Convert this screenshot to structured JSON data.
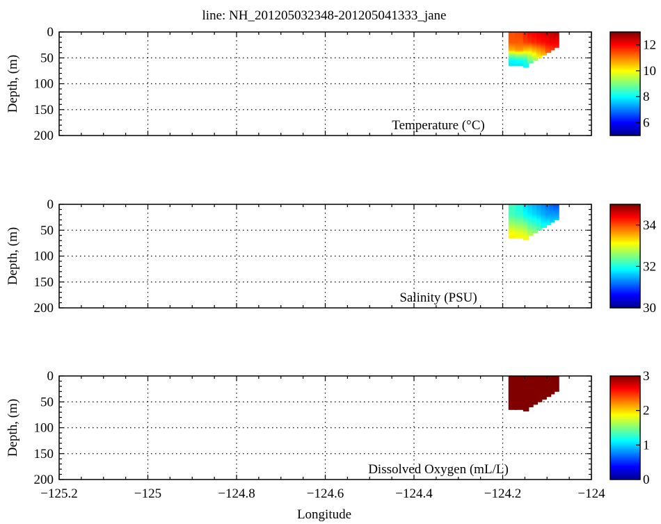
{
  "title": "line: NH_201205032348-201205041333_jane",
  "xlabel": "Longitude",
  "x_ticks": [
    -125.2,
    -125,
    -124.8,
    -124.6,
    -124.4,
    -124.2,
    -124
  ],
  "x_tick_labels": [
    "−125.2",
    "−125",
    "−124.8",
    "−124.6",
    "−124.4",
    "−124.2",
    "−124"
  ],
  "xlim": [
    -125.2,
    -124
  ],
  "chart_data": [
    {
      "type": "heatmap",
      "name": "temperature",
      "label": "Temperature (°C)",
      "ylabel": "Depth, (m)",
      "ylim": [
        0,
        200
      ],
      "y_ticks": [
        0,
        50,
        100,
        150,
        200
      ],
      "y_tick_labels": [
        "0",
        "50",
        "100",
        "150",
        "200"
      ],
      "colorbar": {
        "min": 5,
        "max": 13,
        "ticks": [
          6,
          8,
          10,
          12
        ],
        "tick_labels": [
          "6",
          "8",
          "10",
          "12"
        ]
      },
      "grid": true,
      "profiles": [
        {
          "lon": -124.183,
          "max_depth": 65,
          "values": [
            [
              0,
              11.4
            ],
            [
              20,
              11.3
            ],
            [
              35,
              10.6
            ],
            [
              45,
              9.0
            ],
            [
              55,
              8.0
            ],
            [
              65,
              7.8
            ]
          ]
        },
        {
          "lon": -124.168,
          "max_depth": 65,
          "values": [
            [
              0,
              11.5
            ],
            [
              20,
              11.3
            ],
            [
              35,
              10.8
            ],
            [
              45,
              9.2
            ],
            [
              55,
              8.1
            ],
            [
              65,
              7.8
            ]
          ]
        },
        {
          "lon": -124.15,
          "max_depth": 68,
          "values": [
            [
              0,
              11.8
            ],
            [
              20,
              11.5
            ],
            [
              35,
              10.5
            ],
            [
              45,
              9.2
            ],
            [
              55,
              8.3
            ],
            [
              68,
              8.0
            ]
          ]
        },
        {
          "lon": -124.14,
          "max_depth": 60,
          "values": [
            [
              0,
              12.0
            ],
            [
              20,
              11.6
            ],
            [
              35,
              10.4
            ],
            [
              45,
              9.5
            ],
            [
              60,
              8.6
            ]
          ]
        },
        {
          "lon": -124.13,
          "max_depth": 55,
          "values": [
            [
              0,
              12.1
            ],
            [
              20,
              11.7
            ],
            [
              35,
              10.6
            ],
            [
              45,
              9.8
            ],
            [
              55,
              9.2
            ]
          ]
        },
        {
          "lon": -124.12,
          "max_depth": 50,
          "values": [
            [
              0,
              12.2
            ],
            [
              20,
              11.8
            ],
            [
              35,
              10.8
            ],
            [
              50,
              10.0
            ]
          ]
        },
        {
          "lon": -124.11,
          "max_depth": 45,
          "values": [
            [
              0,
              12.3
            ],
            [
              20,
              11.9
            ],
            [
              35,
              11.0
            ],
            [
              45,
              10.5
            ]
          ]
        },
        {
          "lon": -124.1,
          "max_depth": 40,
          "values": [
            [
              0,
              12.4
            ],
            [
              20,
              12.0
            ],
            [
              40,
              11.2
            ]
          ]
        },
        {
          "lon": -124.09,
          "max_depth": 35,
          "values": [
            [
              0,
              12.5
            ],
            [
              20,
              12.1
            ],
            [
              35,
              11.5
            ]
          ]
        },
        {
          "lon": -124.082,
          "max_depth": 30,
          "values": [
            [
              0,
              12.6
            ],
            [
              15,
              12.2
            ],
            [
              30,
              11.8
            ]
          ]
        }
      ]
    },
    {
      "type": "heatmap",
      "name": "salinity",
      "label": "Salinity (PSU)",
      "ylabel": "Depth, (m)",
      "ylim": [
        0,
        200
      ],
      "y_ticks": [
        0,
        50,
        100,
        150,
        200
      ],
      "y_tick_labels": [
        "0",
        "50",
        "100",
        "150",
        "200"
      ],
      "colorbar": {
        "min": 30,
        "max": 35,
        "ticks": [
          30,
          32,
          34
        ],
        "tick_labels": [
          "30",
          "32",
          "34"
        ]
      },
      "grid": true,
      "profiles": [
        {
          "lon": -124.183,
          "max_depth": 65,
          "values": [
            [
              0,
              32.2
            ],
            [
              20,
              32.2
            ],
            [
              40,
              32.7
            ],
            [
              55,
              33.1
            ],
            [
              65,
              33.2
            ]
          ]
        },
        {
          "lon": -124.168,
          "max_depth": 65,
          "values": [
            [
              0,
              32.0
            ],
            [
              20,
              32.1
            ],
            [
              40,
              32.6
            ],
            [
              55,
              33.0
            ],
            [
              65,
              33.1
            ]
          ]
        },
        {
          "lon": -124.15,
          "max_depth": 68,
          "values": [
            [
              0,
              31.7
            ],
            [
              20,
              31.9
            ],
            [
              40,
              32.5
            ],
            [
              55,
              32.9
            ],
            [
              68,
              33.1
            ]
          ]
        },
        {
          "lon": -124.14,
          "max_depth": 60,
          "values": [
            [
              0,
              31.6
            ],
            [
              20,
              31.8
            ],
            [
              40,
              32.3
            ],
            [
              60,
              32.8
            ]
          ]
        },
        {
          "lon": -124.13,
          "max_depth": 55,
          "values": [
            [
              0,
              31.5
            ],
            [
              20,
              31.7
            ],
            [
              40,
              32.2
            ],
            [
              55,
              32.6
            ]
          ]
        },
        {
          "lon": -124.12,
          "max_depth": 50,
          "values": [
            [
              0,
              31.4
            ],
            [
              20,
              31.6
            ],
            [
              40,
              32.1
            ],
            [
              50,
              32.3
            ]
          ]
        },
        {
          "lon": -124.11,
          "max_depth": 45,
          "values": [
            [
              0,
              31.3
            ],
            [
              20,
              31.5
            ],
            [
              45,
              32.0
            ]
          ]
        },
        {
          "lon": -124.1,
          "max_depth": 40,
          "values": [
            [
              0,
              31.2
            ],
            [
              20,
              31.4
            ],
            [
              40,
              31.9
            ]
          ]
        },
        {
          "lon": -124.09,
          "max_depth": 35,
          "values": [
            [
              0,
              31.1
            ],
            [
              20,
              31.4
            ],
            [
              35,
              31.7
            ]
          ]
        },
        {
          "lon": -124.082,
          "max_depth": 30,
          "values": [
            [
              0,
              31.0
            ],
            [
              15,
              31.3
            ],
            [
              30,
              31.6
            ]
          ]
        }
      ]
    },
    {
      "type": "heatmap",
      "name": "oxygen",
      "label": "Dissolved Oxygen (mL/L)",
      "ylabel": "Depth, (m)",
      "ylim": [
        0,
        200
      ],
      "y_ticks": [
        0,
        50,
        100,
        150,
        200
      ],
      "y_tick_labels": [
        "0",
        "50",
        "100",
        "150",
        "200"
      ],
      "colorbar": {
        "min": 0,
        "max": 3,
        "ticks": [
          0,
          1,
          2,
          3
        ],
        "tick_labels": [
          "0",
          "1",
          "2",
          "3"
        ]
      },
      "grid": true,
      "profiles": [
        {
          "lon": -124.183,
          "max_depth": 65,
          "values": [
            [
              0,
              3
            ],
            [
              65,
              3
            ]
          ]
        },
        {
          "lon": -124.168,
          "max_depth": 65,
          "values": [
            [
              0,
              3
            ],
            [
              65,
              3
            ]
          ]
        },
        {
          "lon": -124.15,
          "max_depth": 68,
          "values": [
            [
              0,
              3
            ],
            [
              68,
              3
            ]
          ]
        },
        {
          "lon": -124.14,
          "max_depth": 60,
          "values": [
            [
              0,
              3
            ],
            [
              60,
              3
            ]
          ]
        },
        {
          "lon": -124.13,
          "max_depth": 55,
          "values": [
            [
              0,
              3
            ],
            [
              55,
              3
            ]
          ]
        },
        {
          "lon": -124.12,
          "max_depth": 50,
          "values": [
            [
              0,
              3
            ],
            [
              50,
              3
            ]
          ]
        },
        {
          "lon": -124.11,
          "max_depth": 45,
          "values": [
            [
              0,
              3
            ],
            [
              45,
              3
            ]
          ]
        },
        {
          "lon": -124.1,
          "max_depth": 40,
          "values": [
            [
              0,
              3
            ],
            [
              40,
              3
            ]
          ]
        },
        {
          "lon": -124.09,
          "max_depth": 35,
          "values": [
            [
              0,
              3
            ],
            [
              35,
              3
            ]
          ]
        },
        {
          "lon": -124.082,
          "max_depth": 30,
          "values": [
            [
              0,
              3
            ],
            [
              30,
              3
            ]
          ]
        }
      ]
    }
  ]
}
